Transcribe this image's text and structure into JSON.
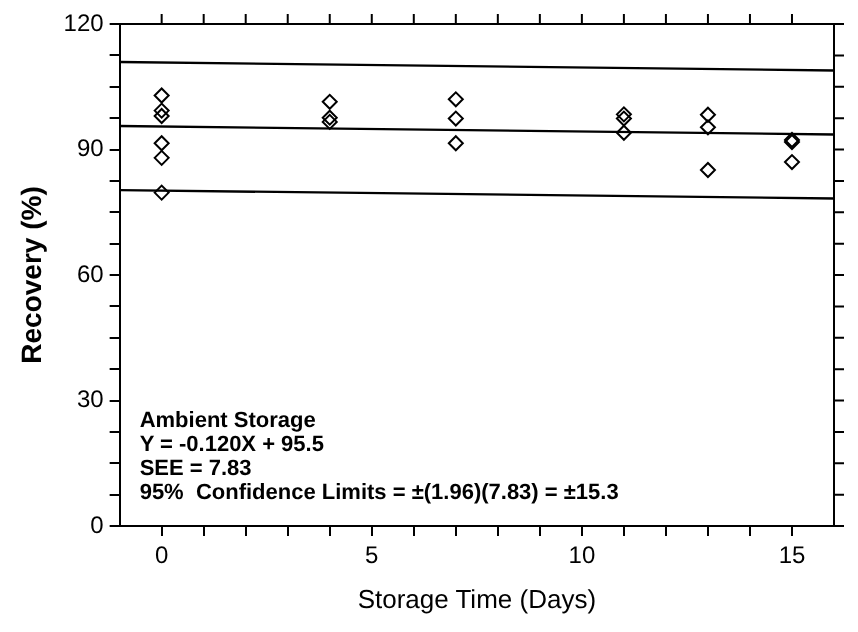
{
  "chart_data": {
    "type": "scatter",
    "xlabel": "Storage Time (Days)",
    "ylabel": "Recovery (%)",
    "xlim": [
      -1,
      16
    ],
    "xticks": [
      0,
      {
        "value": 1,
        "label": null
      },
      {
        "value": 2,
        "label": null
      },
      {
        "value": 3,
        "label": null
      },
      {
        "value": 4,
        "label": null
      },
      5,
      {
        "value": 6,
        "label": null
      },
      {
        "value": 7,
        "label": null
      },
      {
        "value": 8,
        "label": null
      },
      {
        "value": 9,
        "label": null
      },
      10,
      {
        "value": 11,
        "label": null
      },
      {
        "value": 12,
        "label": null
      },
      {
        "value": 13,
        "label": null
      },
      {
        "value": 14,
        "label": null
      },
      15
    ],
    "ylim": [
      0,
      120
    ],
    "yticks": [
      0,
      {
        "value": 7.5,
        "label": null
      },
      {
        "value": 15,
        "label": null
      },
      {
        "value": 22.5,
        "label": null
      },
      30,
      {
        "value": 37.5,
        "label": null
      },
      {
        "value": 45,
        "label": null
      },
      {
        "value": 52.5,
        "label": null
      },
      60,
      {
        "value": 67.5,
        "label": null
      },
      {
        "value": 75,
        "label": null
      },
      {
        "value": 82.5,
        "label": null
      },
      90,
      {
        "value": 97.5,
        "label": null
      },
      {
        "value": 105,
        "label": null
      },
      {
        "value": 112.5,
        "label": null
      },
      120
    ],
    "grid": false,
    "legend": false,
    "marker": "diamond",
    "series": [
      {
        "color": "#000000",
        "x": [
          0,
          0,
          0,
          0,
          0,
          0,
          4,
          4,
          4,
          7,
          7,
          7,
          11,
          11,
          11,
          13,
          13,
          13,
          15,
          15,
          15
        ],
        "values": [
          102.9,
          99.3,
          98,
          91.5,
          88,
          79.7,
          101.4,
          97.6,
          96.6,
          102,
          97.4,
          91.5,
          98.4,
          97.4,
          94,
          98.3,
          95.3,
          85.1,
          92.3,
          91.8,
          87
        ]
      },
      {
        "type": "line",
        "color": "#000000",
        "marker": "none",
        "x": [
          -1,
          16
        ],
        "values": [
          110.9,
          108.9
        ]
      },
      {
        "type": "line",
        "color": "#000000",
        "marker": "none",
        "x": [
          -1,
          16
        ],
        "values": [
          95.6,
          93.6
        ]
      },
      {
        "type": "line",
        "color": "#000000",
        "marker": "none",
        "x": [
          -1,
          16
        ],
        "values": [
          80.3,
          78.3
        ]
      }
    ],
    "annotations": [
      "Ambient Storage",
      "Y = -0.120X + 95.5",
      "SEE = 7.83",
      "95%  Confidence Limits = ±(1.96)(7.83) = ±15.3"
    ]
  }
}
